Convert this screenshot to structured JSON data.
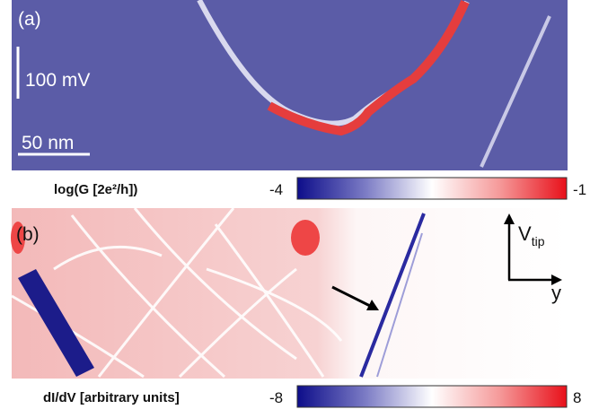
{
  "panel_a": {
    "label": "(a)",
    "scale_voltage": "100 mV",
    "scale_length": "50 nm",
    "colorbar": {
      "label": "log(G [2e²/h])",
      "min": -4,
      "max": -1
    }
  },
  "panel_b": {
    "label": "(b)",
    "axis_vertical": "V",
    "axis_vertical_sub": "tip",
    "axis_horizontal": "y",
    "colorbar": {
      "label": "dI/dV [arbitrary units]",
      "min": -8,
      "max": 8
    }
  }
}
